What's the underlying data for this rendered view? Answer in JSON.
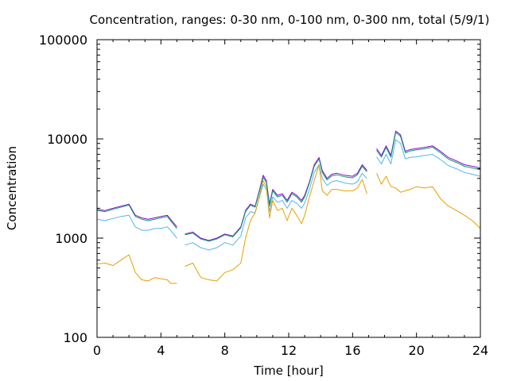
{
  "chart_data": {
    "type": "line",
    "title": "Concentration, ranges: 0-30 nm, 0-100 nm, 0-300 nm, total (5/9/1)",
    "xlabel": "Time [hour]",
    "ylabel": "Concentration",
    "xlim": [
      0,
      24
    ],
    "ylim": [
      100,
      100000
    ],
    "yscale": "log",
    "grid": false,
    "legend": "none",
    "xticks": [
      {
        "v": 0,
        "label": "0"
      },
      {
        "v": 4,
        "label": "4"
      },
      {
        "v": 8,
        "label": "8"
      },
      {
        "v": 12,
        "label": "12"
      },
      {
        "v": 16,
        "label": "16"
      },
      {
        "v": 20,
        "label": "20"
      },
      {
        "v": 24,
        "label": "24"
      }
    ],
    "yticks": [
      {
        "v": 100,
        "label": "100"
      },
      {
        "v": 1000,
        "label": "1000"
      },
      {
        "v": 10000,
        "label": "10000"
      },
      {
        "v": 100000,
        "label": "100000"
      }
    ],
    "x": [
      0,
      0.5,
      1,
      1.5,
      2,
      2.4,
      2.8,
      3.2,
      3.6,
      4,
      4.4,
      4.6,
      5,
      5.3,
      5.5,
      6,
      6.5,
      7,
      7.5,
      8,
      8.5,
      9,
      9.3,
      9.6,
      9.9,
      10.2,
      10.4,
      10.6,
      10.8,
      11,
      11.3,
      11.6,
      11.9,
      12.2,
      12.5,
      12.8,
      13,
      13.3,
      13.6,
      13.9,
      14.1,
      14.4,
      14.7,
      15,
      15.5,
      16,
      16.3,
      16.6,
      16.9,
      17.2,
      17.5,
      17.8,
      18.1,
      18.4,
      18.7,
      19,
      19.3,
      19.6,
      20,
      20.5,
      21,
      21.5,
      22,
      22.5,
      23,
      23.5,
      24
    ],
    "series": [
      {
        "color": "#9400d3",
        "values": [
          1950,
          1900,
          2000,
          2100,
          2200,
          1700,
          1600,
          1550,
          1600,
          1650,
          1700,
          1550,
          1300,
          null,
          1100,
          1150,
          1000,
          950,
          1000,
          1100,
          1050,
          1300,
          1900,
          2200,
          2100,
          3200,
          4300,
          3800,
          2200,
          3100,
          2700,
          2800,
          2400,
          2900,
          2700,
          2400,
          2700,
          3700,
          5500,
          6500,
          4800,
          4000,
          4400,
          4500,
          4300,
          4200,
          4500,
          5500,
          4800,
          null,
          8000,
          6800,
          8500,
          6800,
          12000,
          11000,
          7500,
          7800,
          8000,
          8200,
          8500,
          7500,
          6500,
          6000,
          5500,
          5300,
          5100
        ]
      },
      {
        "color": "#009e73",
        "values": [
          1900,
          1850,
          1950,
          2050,
          2150,
          1650,
          1550,
          1500,
          1550,
          1600,
          1650,
          1500,
          1250,
          null,
          1080,
          1120,
          980,
          930,
          980,
          1080,
          1030,
          1270,
          1850,
          2150,
          2050,
          3100,
          4100,
          3650,
          2100,
          3000,
          2600,
          2700,
          2300,
          2800,
          2600,
          2300,
          2600,
          3600,
          5300,
          6300,
          4600,
          3850,
          4250,
          4350,
          4150,
          4050,
          4350,
          5300,
          4650,
          null,
          7700,
          6550,
          8200,
          6550,
          11600,
          10600,
          7250,
          7550,
          7750,
          7950,
          8250,
          7250,
          6250,
          5800,
          5300,
          5100,
          4900
        ]
      },
      {
        "color": "#56b4e9",
        "values": [
          1550,
          1500,
          1580,
          1650,
          1700,
          1300,
          1200,
          1200,
          1250,
          1250,
          1300,
          1200,
          1000,
          null,
          850,
          900,
          800,
          760,
          800,
          900,
          850,
          1050,
          1600,
          1850,
          1800,
          2700,
          3500,
          3100,
          1850,
          2600,
          2300,
          2400,
          2000,
          2400,
          2250,
          2000,
          2250,
          3100,
          4600,
          5500,
          4000,
          3400,
          3700,
          3800,
          3600,
          3500,
          3700,
          4500,
          4000,
          null,
          6600,
          5600,
          7000,
          5600,
          9800,
          9000,
          6300,
          6500,
          6600,
          6800,
          7000,
          6200,
          5400,
          5000,
          4600,
          4400,
          4200
        ]
      },
      {
        "color": "#e69f00",
        "values": [
          550,
          560,
          530,
          600,
          680,
          450,
          380,
          370,
          400,
          390,
          380,
          350,
          350,
          null,
          520,
          560,
          400,
          380,
          370,
          450,
          480,
          560,
          1000,
          1500,
          1800,
          2800,
          3800,
          3300,
          1600,
          2400,
          1900,
          2000,
          1500,
          2000,
          1700,
          1400,
          1700,
          2600,
          3800,
          5500,
          3000,
          2700,
          3100,
          3100,
          3000,
          3000,
          3200,
          3900,
          2800,
          null,
          4500,
          3500,
          4200,
          3300,
          3200,
          2900,
          3000,
          3100,
          3300,
          3200,
          3300,
          2500,
          2100,
          1900,
          1700,
          1500,
          1250
        ]
      }
    ]
  }
}
